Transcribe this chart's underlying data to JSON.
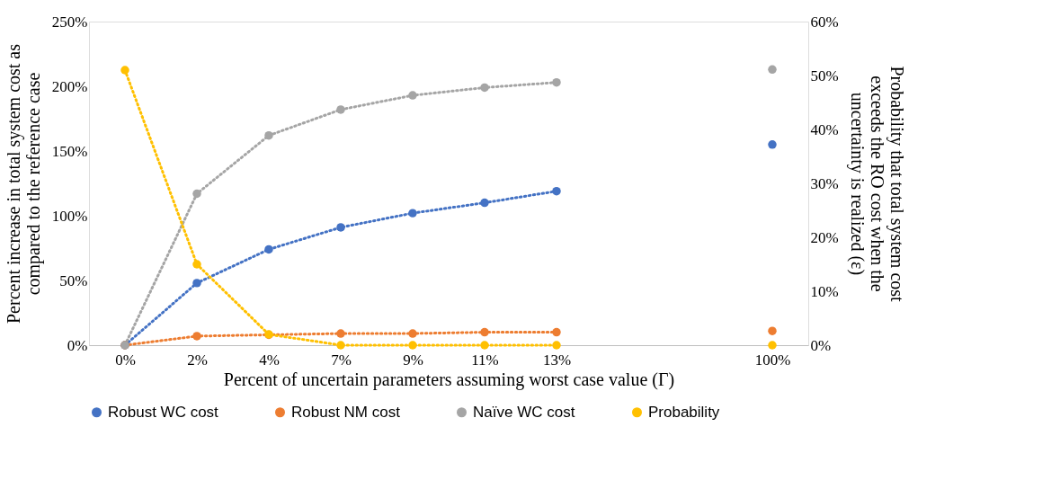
{
  "chart_data": {
    "type": "line",
    "categories": [
      "0%",
      "2%",
      "4%",
      "7%",
      "9%",
      "11%",
      "13%",
      null,
      null,
      "100%"
    ],
    "xlabel": "Percent of uncertain parameters assuming worst case value (Γ)",
    "ylabel": "Percent increase in total system cost as compared to the reference case",
    "y2label": "Probability that total system cost exceeds the RO cost when the uncertainty is realized (ε)",
    "series": [
      {
        "name": "Robust WC cost",
        "color": "#4472c4",
        "values": [
          0,
          48,
          74,
          91,
          102,
          110,
          119,
          null,
          null,
          155
        ]
      },
      {
        "name": "Robust NM cost",
        "color": "#ed7d31",
        "values": [
          0,
          7,
          8,
          9,
          9,
          10,
          10,
          null,
          null,
          11
        ]
      },
      {
        "name": "Naïve WC cost",
        "color": "#a5a5a5",
        "values": [
          0,
          117,
          162,
          182,
          193,
          199,
          203,
          null,
          null,
          213
        ]
      },
      {
        "name": "Probability",
        "color": "#ffc000",
        "axis": "y2",
        "values": [
          51,
          15,
          2,
          0,
          0,
          0,
          0,
          null,
          null,
          0
        ]
      }
    ],
    "ylim": [
      0,
      250
    ],
    "yticks": [
      {
        "value": 0,
        "label": "0%"
      },
      {
        "value": 50,
        "label": "50%"
      },
      {
        "value": 100,
        "label": "100%"
      },
      {
        "value": 150,
        "label": "150%"
      },
      {
        "value": 200,
        "label": "200%"
      },
      {
        "value": 250,
        "label": "250%"
      }
    ],
    "y2lim": [
      0,
      60
    ],
    "y2ticks": [
      {
        "value": 0,
        "label": "0%"
      },
      {
        "value": 10,
        "label": "10%"
      },
      {
        "value": 20,
        "label": "20%"
      },
      {
        "value": 30,
        "label": "30%"
      },
      {
        "value": 40,
        "label": "40%"
      },
      {
        "value": 50,
        "label": "50%"
      },
      {
        "value": 60,
        "label": "60%"
      }
    ],
    "grid": false,
    "legend": "bottom",
    "marker": "circle",
    "line_style": "dotted"
  }
}
